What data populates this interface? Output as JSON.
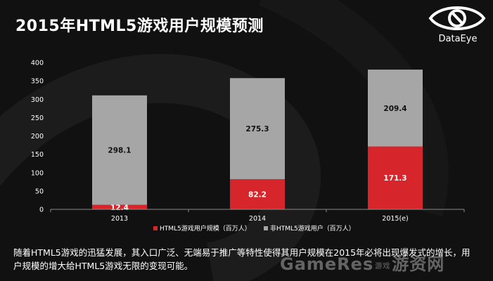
{
  "slide": {
    "title": "2015年HTML5游戏用户规模预测",
    "caption": "随着HTML5游戏的迅猛发展，其入口广泛、无端易于推广等特性使得其用户规模在2015年必将出现爆发式的增长，用户规模的增大给HTML5游戏无限的变现可能。"
  },
  "logo": {
    "text": "DataEye",
    "icon": "eye-logo-icon"
  },
  "watermark": {
    "left": "GameRes",
    "sep": "游戏",
    "right": "游资网"
  },
  "colors": {
    "series1": "#D7262B",
    "series2": "#A6A6A6",
    "background": "#111111"
  },
  "chart_data": {
    "type": "bar",
    "stacked": true,
    "categories": [
      "2013",
      "2014",
      "2015(e)"
    ],
    "series": [
      {
        "name": "HTML5游戏用户规模（百万人）",
        "values": [
          12.4,
          82.2,
          171.3
        ],
        "color": "#D7262B"
      },
      {
        "name": "非HTML5游戏用户（百万人）",
        "values": [
          298.1,
          275.3,
          209.4
        ],
        "color": "#A6A6A6"
      }
    ],
    "ylim": [
      0,
      400
    ],
    "yticks": [
      0,
      50,
      100,
      150,
      200,
      250,
      300,
      350,
      400
    ],
    "legend": "bottom",
    "grid": false
  }
}
